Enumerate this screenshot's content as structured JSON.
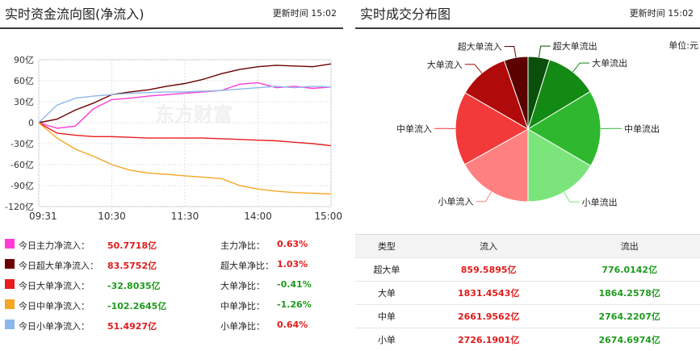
{
  "left": {
    "title": "实时资金流向图(净流入)",
    "update_label": "更新时间",
    "update_time": "15:02",
    "watermark": "东方财富",
    "legend": [
      {
        "label": "今日主力净流入：",
        "value": "50.7718亿",
        "ratio_label": "主力净比：",
        "ratio": "0.63%",
        "color": "#ff3ad8",
        "value_color": "red",
        "ratio_color": "red"
      },
      {
        "label": "今日超大单净流入：",
        "value": "83.5752亿",
        "ratio_label": "超大单净比：",
        "ratio": "1.03%",
        "color": "#6b0000",
        "value_color": "red",
        "ratio_color": "red"
      },
      {
        "label": "今日大单净流入：",
        "value": "-32.8035亿",
        "ratio_label": "大单净比：",
        "ratio": "-0.41%",
        "color": "#e81c1c",
        "value_color": "green",
        "ratio_color": "green"
      },
      {
        "label": "今日中单净流入：",
        "value": "-102.2645亿",
        "ratio_label": "中单净比：",
        "ratio": "-1.26%",
        "color": "#f5a623",
        "value_color": "green",
        "ratio_color": "green"
      },
      {
        "label": "今日小单净流入：",
        "value": "51.4927亿",
        "ratio_label": "小单净比：",
        "ratio": "0.64%",
        "color": "#8bb8e8",
        "value_color": "red",
        "ratio_color": "red"
      }
    ]
  },
  "right": {
    "title": "实时成交分布图",
    "update_label": "更新时间",
    "update_time": "15:02",
    "unit": "单位:元",
    "table_headers": [
      "类型",
      "流入",
      "流出"
    ],
    "table_rows": [
      {
        "type": "超大单",
        "in": "859.5895亿",
        "out": "776.0142亿"
      },
      {
        "type": "大单",
        "in": "1831.4543亿",
        "out": "1864.2578亿"
      },
      {
        "type": "中单",
        "in": "2661.9562亿",
        "out": "2764.2207亿"
      },
      {
        "type": "小单",
        "in": "2726.1901亿",
        "out": "2674.6974亿"
      }
    ]
  },
  "chart_data": [
    {
      "type": "line",
      "title": "实时资金流向图(净流入)",
      "unit": "单位:元",
      "x_ticks": [
        "09:31",
        "10:30",
        "11:30",
        "14:00",
        "15:00"
      ],
      "y_ticks": [
        "90亿",
        "60亿",
        "30亿",
        "0",
        "-30亿",
        "-60亿",
        "-90亿",
        "-120亿"
      ],
      "ylim": [
        -120,
        90
      ],
      "x": [
        "09:31",
        "09:45",
        "10:00",
        "10:15",
        "10:30",
        "10:45",
        "11:00",
        "11:15",
        "11:30",
        "13:15",
        "13:30",
        "13:45",
        "14:00",
        "14:15",
        "14:30",
        "14:45",
        "15:00"
      ],
      "series": [
        {
          "name": "主力",
          "color": "#ff3ad8",
          "values": [
            0,
            -8,
            -5,
            20,
            33,
            35,
            38,
            40,
            42,
            44,
            46,
            55,
            57,
            50,
            52,
            49,
            51
          ]
        },
        {
          "name": "超大单",
          "color": "#6b0000",
          "values": [
            0,
            5,
            18,
            28,
            40,
            44,
            47,
            52,
            56,
            62,
            70,
            76,
            80,
            82,
            81,
            80,
            84
          ]
        },
        {
          "name": "大单",
          "color": "#e81c1c",
          "values": [
            0,
            -15,
            -18,
            -20,
            -20,
            -21,
            -22,
            -22,
            -22,
            -22,
            -23,
            -24,
            -25,
            -26,
            -28,
            -30,
            -33
          ]
        },
        {
          "name": "中单",
          "color": "#f5a623",
          "values": [
            0,
            -22,
            -38,
            -48,
            -60,
            -68,
            -72,
            -74,
            -76,
            -78,
            -80,
            -90,
            -95,
            -98,
            -100,
            -101,
            -102
          ]
        },
        {
          "name": "小单",
          "color": "#8bb8e8",
          "values": [
            0,
            25,
            35,
            38,
            40,
            42,
            43,
            44,
            44,
            45,
            46,
            48,
            50,
            52,
            50,
            52,
            51
          ]
        }
      ]
    },
    {
      "type": "pie",
      "title": "实时成交分布图",
      "unit": "单位:元",
      "slices": [
        {
          "label": "超大单流出",
          "value": 776.0142,
          "color": "#0a4f0a"
        },
        {
          "label": "大单流出",
          "value": 1864.2578,
          "color": "#138a13"
        },
        {
          "label": "中单流出",
          "value": 2764.2207,
          "color": "#2fb82f"
        },
        {
          "label": "小单流出",
          "value": 2674.6974,
          "color": "#7be57b"
        },
        {
          "label": "小单流入",
          "value": 2726.1901,
          "color": "#ff8080"
        },
        {
          "label": "中单流入",
          "value": 2661.9562,
          "color": "#f23a3a"
        },
        {
          "label": "大单流入",
          "value": 1831.4543,
          "color": "#b00a0a"
        },
        {
          "label": "超大单流入",
          "value": 859.5895,
          "color": "#5c0000"
        }
      ]
    }
  ]
}
